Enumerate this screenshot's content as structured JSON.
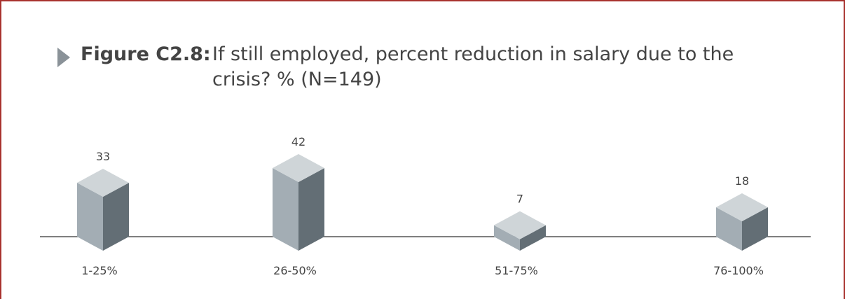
{
  "figure": {
    "label": "Figure C2.8:",
    "title": "If still employed, percent reduction in salary due to the crisis? % (N=149)"
  },
  "chart_data": {
    "type": "bar",
    "categories": [
      "1-25%",
      "26-50%",
      "51-75%",
      "76-100%"
    ],
    "values": [
      33,
      42,
      7,
      18
    ],
    "title": "If still employed, percent reduction in salary due to the crisis? % (N=149)",
    "xlabel": "",
    "ylabel": "",
    "ylim": [
      0,
      42
    ],
    "grid": false,
    "colors": {
      "front": "#a3adb4",
      "side": "#636e75",
      "top": "#cfd5d8",
      "axis": "#555555"
    }
  }
}
